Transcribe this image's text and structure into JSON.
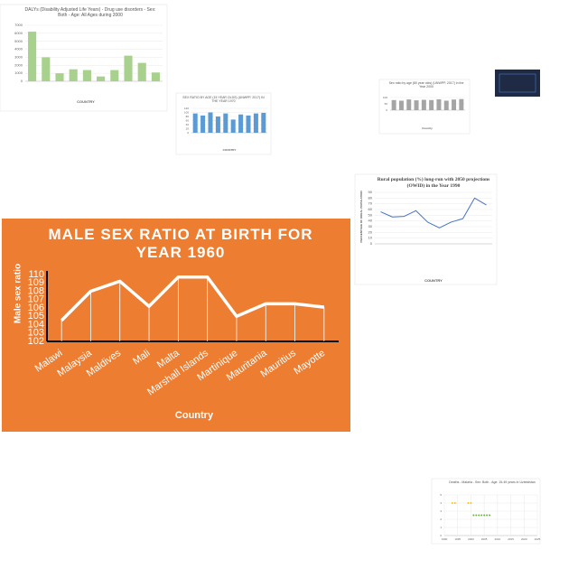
{
  "chart_data": [
    {
      "type": "line",
      "title": "MALE SEX RATIO AT BIRTH FOR YEAR 1960",
      "xlabel": "Country",
      "ylabel": "Male sex ratio",
      "categories": [
        "Malawi",
        "Malaysia",
        "Maldives",
        "Mali",
        "Malta",
        "Marshall Islands",
        "Martinique",
        "Mauritania",
        "Mauritius",
        "Mayotte"
      ],
      "values": [
        104.5,
        108,
        109.2,
        106.2,
        109.7,
        109.7,
        105,
        106.5,
        106.5,
        106.1
      ],
      "color": "#ffffff",
      "ylim": [
        102,
        110
      ],
      "yticks": [
        102,
        103,
        104,
        105,
        106,
        107,
        108,
        109,
        110
      ],
      "drop_lines": true,
      "grid": false
    },
    {
      "type": "bar",
      "title": "DALYs (Disability Adjusted Life Years) - Drug use disorders - Sex: Both - Age: All Ages during 2000",
      "xlabel": "COUNTRY",
      "categories": [
        null,
        null,
        null,
        null,
        null,
        null,
        null,
        null,
        null,
        null
      ],
      "values": [
        6200,
        3000,
        1000,
        1500,
        1400,
        600,
        1400,
        3200,
        2300,
        1100
      ],
      "color": "#a9d18e",
      "ylim": [
        0,
        7000
      ],
      "yticks": [
        0,
        1000,
        2000,
        3000,
        4000,
        5000,
        6000,
        7000
      ],
      "grid": true
    },
    {
      "type": "bar",
      "title": "SEX RATIO BY AGE (15 YEAR OLDS) (UNWPP, 2017) IN THE YEAR 1970",
      "xlabel": "COUNTRY",
      "categories": [
        null,
        null,
        null,
        null,
        null,
        null,
        null,
        null,
        null,
        null
      ],
      "values": [
        95,
        85,
        100,
        80,
        95,
        65,
        90,
        85,
        95,
        98
      ],
      "color": "#5b9bd5",
      "ylim": [
        0,
        120
      ],
      "yticks": [
        0,
        20,
        40,
        60,
        80,
        100,
        120
      ],
      "grid": true
    },
    {
      "type": "bar",
      "title": "Sex ratio by age (80 year olds) (UNWPP, 2017) in the Year 2000",
      "xlabel": "Country",
      "categories": [
        null,
        null,
        null,
        null,
        null,
        null,
        null,
        null,
        null,
        null
      ],
      "values": [
        80,
        75,
        85,
        78,
        82,
        80,
        86,
        75,
        84,
        88
      ],
      "color": "#a5a5a5",
      "ylim": [
        0,
        100
      ],
      "yticks": [
        0,
        50,
        100
      ],
      "grid": true
    },
    {
      "type": "line",
      "title": "Rural population (%) long-run with 2050 projections (OWID) in the Year 1990",
      "xlabel": "COUNTRY",
      "ylabel": "PERCENTAGE OF RURAL POPULATION",
      "categories": [
        null,
        null,
        null,
        null,
        null,
        null,
        null,
        null,
        null,
        null
      ],
      "values": [
        56,
        47,
        48,
        58,
        38,
        28,
        38,
        44,
        80,
        68
      ],
      "color": "#4472c4",
      "ylim": [
        0,
        90
      ],
      "yticks": [
        0,
        10,
        20,
        30,
        40,
        50,
        60,
        70,
        80,
        90
      ],
      "grid": true
    },
    {
      "type": "scatter",
      "title": "Deaths - Malaria - Sex: Both - Age: 15-49 years in Uzbekistan",
      "series": [
        {
          "color": "#ffc000",
          "x": [
            1993,
            1994,
            1999,
            2000
          ],
          "values": [
            4,
            4,
            4,
            4
          ]
        },
        {
          "color": "#70ad47",
          "x": [
            2001,
            2002,
            2003,
            2004,
            2005,
            2006,
            2007
          ],
          "values": [
            2.5,
            2.5,
            2.5,
            2.5,
            2.5,
            2.5,
            2.5
          ]
        }
      ],
      "xlim": [
        1990,
        2025
      ],
      "xticks": [
        1990,
        1995,
        2000,
        2005,
        2010,
        2015,
        2020,
        2025
      ],
      "ylim": [
        0,
        5
      ],
      "yticks": [
        0,
        1,
        2,
        3,
        4,
        5
      ],
      "grid": true
    }
  ]
}
